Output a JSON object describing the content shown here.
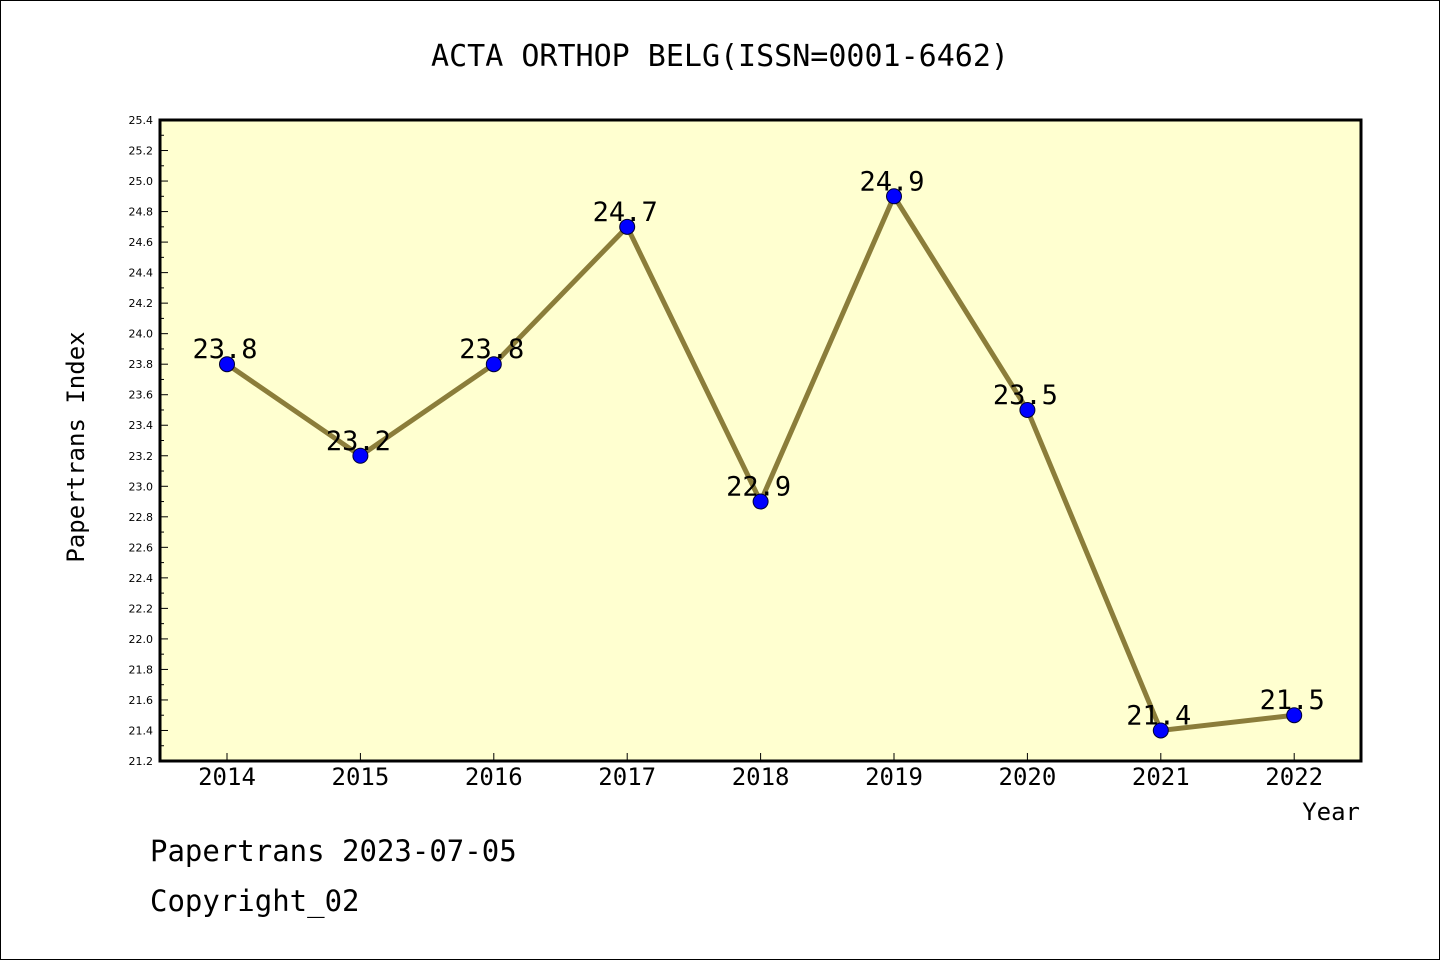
{
  "chart_data": {
    "type": "line",
    "title": "ACTA ORTHOP BELG(ISSN=0001-6462)",
    "xlabel": "Year",
    "ylabel": "Papertrans Index",
    "categories": [
      "2014",
      "2015",
      "2016",
      "2017",
      "2018",
      "2019",
      "2020",
      "2021",
      "2022"
    ],
    "series": [
      {
        "values": [
          23.8,
          23.2,
          23.8,
          24.7,
          22.9,
          24.9,
          23.5,
          21.4,
          21.5
        ]
      }
    ],
    "data_labels": [
      "23.8",
      "23.2",
      "23.8",
      "24.7",
      "22.9",
      "24.9",
      "23.5",
      "21.4",
      "21.5"
    ],
    "ylim": [
      21.2,
      25.4
    ],
    "y_ticks": [
      "21.2",
      "21.4",
      "21.6",
      "21.8",
      "22.0",
      "22.2",
      "22.4",
      "22.6",
      "22.8",
      "23.0",
      "23.2",
      "23.4",
      "23.6",
      "23.8",
      "24.0",
      "24.2",
      "24.4",
      "24.6",
      "24.8",
      "25.0",
      "25.2",
      "25.4"
    ],
    "grid": false,
    "colors": {
      "plot_background": "#ffffd0",
      "line": "#8b7d3a",
      "marker": "#0000ff"
    }
  },
  "footer": {
    "line1": "Papertrans 2023-07-05",
    "line2": "Copyright_02"
  }
}
